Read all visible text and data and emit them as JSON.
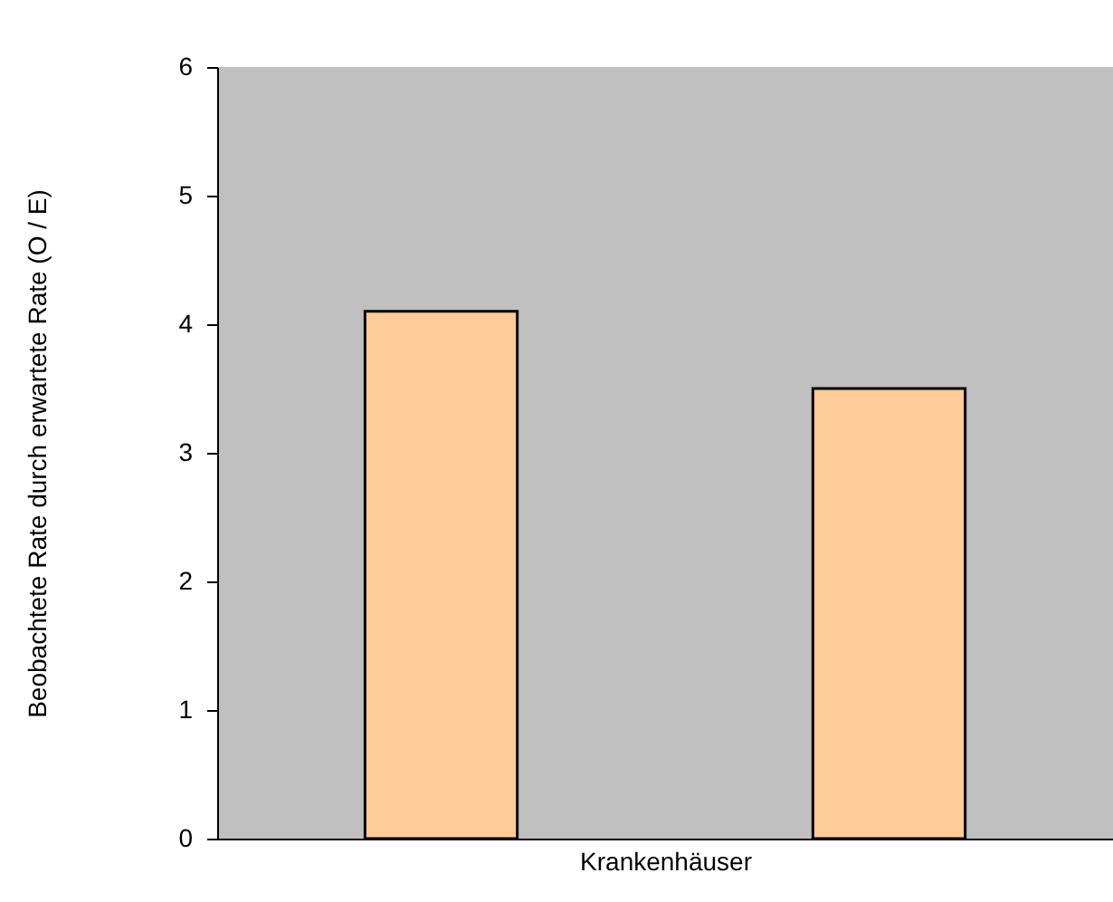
{
  "chart_data": {
    "type": "bar",
    "xlabel": "Krankenhäuser",
    "ylabel": "Beobachtete Rate durch erwartete Rate (O / E)",
    "categories": [
      null,
      null
    ],
    "values": [
      4.1,
      3.5
    ],
    "color": "#ffcc99",
    "ylim": [
      0,
      6
    ],
    "yticks": [
      0,
      1,
      2,
      3,
      4,
      5,
      6
    ],
    "grid": false
  }
}
